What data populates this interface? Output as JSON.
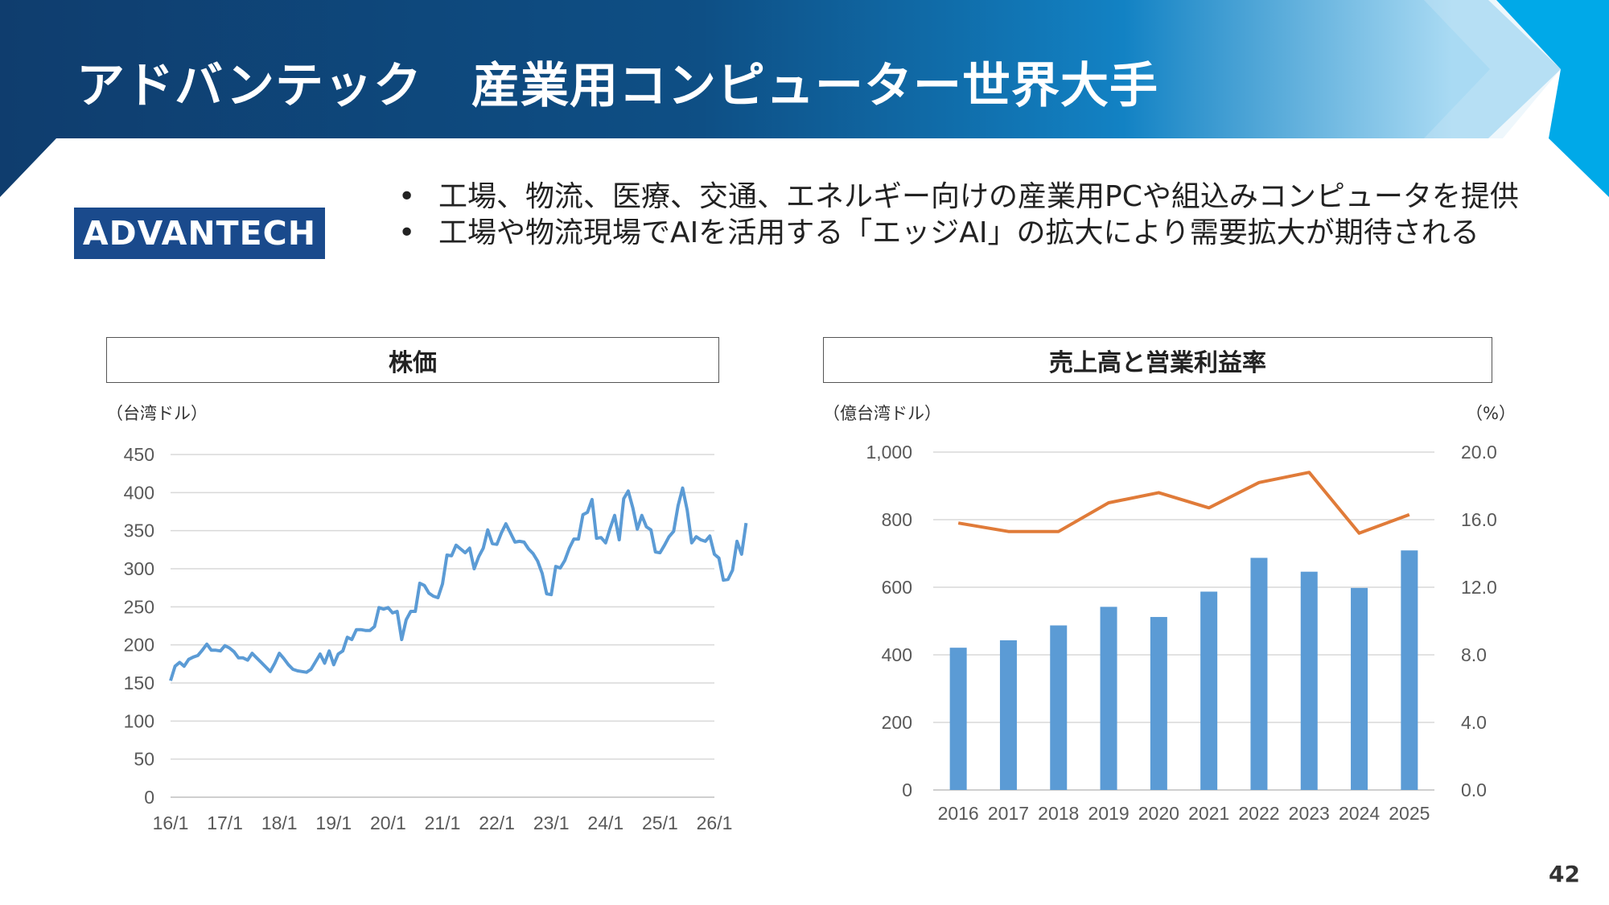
{
  "header": {
    "title": "アドバンテック　産業用コンピューター世界大手"
  },
  "logo": {
    "text": "ADVANTECH",
    "bg": "#1a4a8c"
  },
  "bullets": [
    "工場、物流、医療、交通、エネルギー向けの産業用PCや組込みコンピュータを提供",
    "工場や物流現場でAIを活用する「エッジAI」の拡大により需要拡大が期待される"
  ],
  "bullet_glyph": "•",
  "page_number": "42",
  "colors": {
    "header_dark": "#0f3d6e",
    "header_light": "#00a9e8",
    "line": "#5b9bd5",
    "bar": "#5b9bd5",
    "margin_line": "#e07b39"
  },
  "chart_data": [
    {
      "type": "line",
      "title": "株価",
      "unit": "（台湾ドル）",
      "ylim": [
        0,
        450
      ],
      "yticks": [
        "0",
        "50",
        "100",
        "150",
        "200",
        "250",
        "300",
        "350",
        "400",
        "450"
      ],
      "xticks": [
        "16/1",
        "17/1",
        "18/1",
        "19/1",
        "20/1",
        "21/1",
        "22/1",
        "23/1",
        "24/1",
        "25/1",
        "26/1"
      ],
      "grid": true,
      "series": [
        {
          "x_start": 2016.0,
          "x_step": 0.08333,
          "values": [
            153,
            172,
            177,
            172,
            181,
            184,
            186,
            193,
            201,
            193,
            193,
            192,
            199,
            196,
            191,
            183,
            183,
            180,
            189,
            183,
            177,
            171,
            165,
            176,
            189,
            182,
            174,
            168,
            166,
            165,
            164,
            168,
            178,
            188,
            176,
            192,
            174,
            188,
            192,
            210,
            207,
            220,
            220,
            219,
            219,
            224,
            249,
            247,
            249,
            242,
            244,
            207,
            233,
            244,
            244,
            281,
            278,
            268,
            264,
            262,
            280,
            318,
            317,
            331,
            326,
            321,
            327,
            300,
            316,
            327,
            351,
            333,
            332,
            347,
            359,
            347,
            335,
            336,
            335,
            326,
            320,
            310,
            294,
            267,
            266,
            303,
            301,
            311,
            327,
            339,
            339,
            371,
            374,
            391,
            340,
            341,
            334,
            353,
            370,
            338,
            392,
            402,
            380,
            352,
            370,
            355,
            351,
            322,
            321,
            331,
            342,
            349,
            383,
            406,
            377,
            334,
            342,
            338,
            336,
            343,
            319,
            314,
            285,
            286,
            298,
            336,
            319,
            360
          ]
        }
      ]
    },
    {
      "type": "bar",
      "title": "売上高と営業利益率",
      "unit_left": "（億台湾ドル）",
      "unit_right": "（%）",
      "categories": [
        "2016",
        "2017",
        "2018",
        "2019",
        "2020",
        "2021",
        "2022",
        "2023",
        "2024",
        "2025"
      ],
      "ylim": [
        0,
        1000
      ],
      "yticks": [
        "0",
        "200",
        "400",
        "600",
        "800",
        "1,000"
      ],
      "y2lim": [
        0,
        20
      ],
      "y2ticks": [
        "0.0",
        "4.0",
        "8.0",
        "12.0",
        "16.0",
        "20.0"
      ],
      "grid": true,
      "series": [
        {
          "type": "bar",
          "axis": "left",
          "values": [
            421,
            443,
            487,
            542,
            512,
            587,
            687,
            646,
            598,
            709
          ]
        },
        {
          "type": "line",
          "axis": "right",
          "values": [
            15.8,
            15.3,
            15.3,
            17.0,
            17.6,
            16.7,
            18.2,
            18.8,
            15.2,
            16.3
          ]
        }
      ]
    }
  ]
}
